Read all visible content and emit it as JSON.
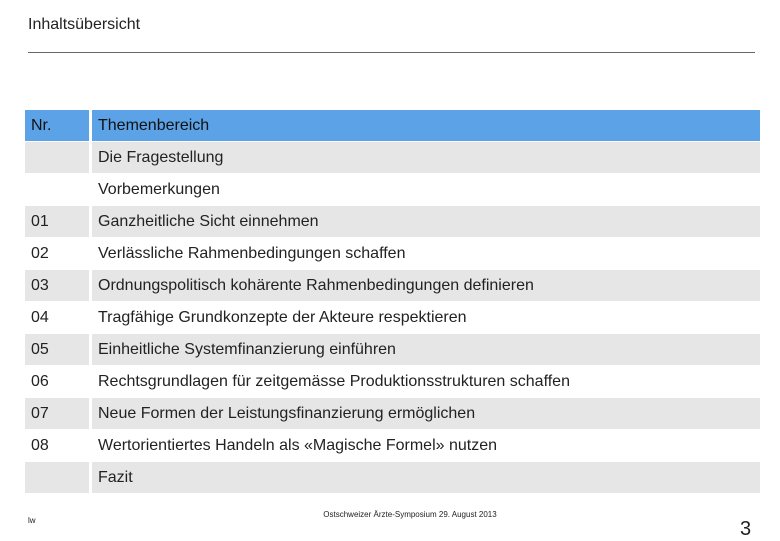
{
  "header": {
    "title": "Inhaltsübersicht"
  },
  "table": {
    "columns": [
      "Nr.",
      "Themenbereich"
    ],
    "rows": [
      {
        "topic": "Die Fragestellung"
      },
      {
        "topic": "Vorbemerkungen"
      },
      {
        "nr": "01",
        "topic": "Ganzheitliche Sicht einnehmen"
      },
      {
        "nr": "02",
        "topic": "Verlässliche Rahmenbedingungen schaffen"
      },
      {
        "nr": "03",
        "topic": "Ordnungspolitisch kohärente Rahmenbedingungen definieren"
      },
      {
        "nr": "04",
        "topic": "Tragfähige Grundkonzepte der Akteure respektieren"
      },
      {
        "nr": "05",
        "topic": "Einheitliche Systemfinanzierung einführen"
      },
      {
        "nr": "06",
        "topic": "Rechtsgrundlagen für zeitgemässe Produktionsstrukturen schaffen"
      },
      {
        "nr": "07",
        "topic": "Neue Formen der Leistungsfinanzierung ermöglichen"
      },
      {
        "nr": "08",
        "topic": "Wertorientiertes Handeln als «Magische Formel» nutzen"
      },
      {
        "topic": "Fazit"
      }
    ]
  },
  "footer": {
    "author": "lw",
    "event": "Ostschweizer Ärzte-Symposium 29. August 2013",
    "page": 3
  }
}
